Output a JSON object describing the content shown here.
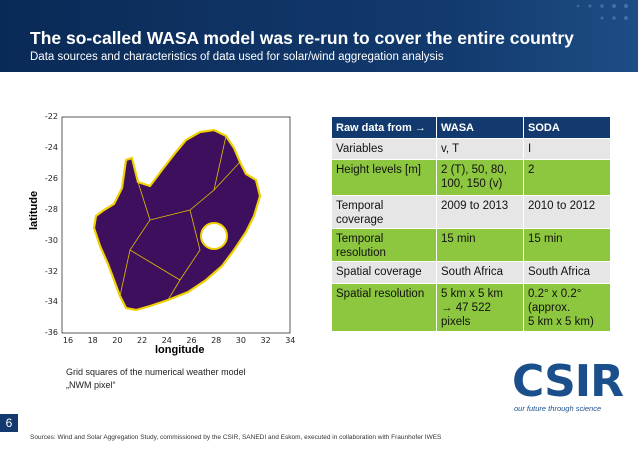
{
  "header": {
    "title": "The so-called WASA model was re-run to cover the entire country",
    "subtitle": "Data sources and characteristics of data used for solar/wind aggregation analysis"
  },
  "map": {
    "y_ticks": [
      "-22",
      "-24",
      "-26",
      "-28",
      "-30",
      "-32",
      "-34",
      "-36"
    ],
    "x_ticks": [
      "16",
      "18",
      "20",
      "22",
      "24",
      "26",
      "28",
      "30",
      "32",
      "34"
    ],
    "y_label": "latitude",
    "x_label": "longitude"
  },
  "caption": [
    "Grid squares of the numerical weather model",
    "„NWM pixel“"
  ],
  "table": {
    "header": [
      "Raw data from →",
      "WASA",
      "SODA"
    ],
    "rows": [
      [
        [
          "Variables"
        ],
        [
          "v, T"
        ],
        [
          "I"
        ]
      ],
      [
        [
          "Height levels [m]"
        ],
        [
          "2 (T), 50, 80,",
          "100, 150 (v)"
        ],
        [
          "2"
        ]
      ],
      [
        [
          "Temporal",
          "coverage"
        ],
        [
          "2009 to 2013"
        ],
        [
          "2010 to 2012"
        ]
      ],
      [
        [
          "Temporal",
          "resolution"
        ],
        [
          "15 min"
        ],
        [
          "15 min"
        ]
      ],
      [
        [
          "Spatial coverage"
        ],
        [
          "South Africa"
        ],
        [
          "South Africa"
        ]
      ],
      [
        [
          "Spatial resolution"
        ],
        [
          "5 km x 5 km",
          "→ 47 522",
          "pixels"
        ],
        [
          "0.2° x 0.2°",
          "(approx.",
          "5 km x 5 km)"
        ]
      ]
    ]
  },
  "logo": "CSIR",
  "tagline": "our future through science",
  "page_number": "6",
  "sources": "Sources: Wind and Solar Aggregation Study, commissioned by the CSIR, SANEDI and Eskom, executed in collaboration with Fraunhofer IWES"
}
